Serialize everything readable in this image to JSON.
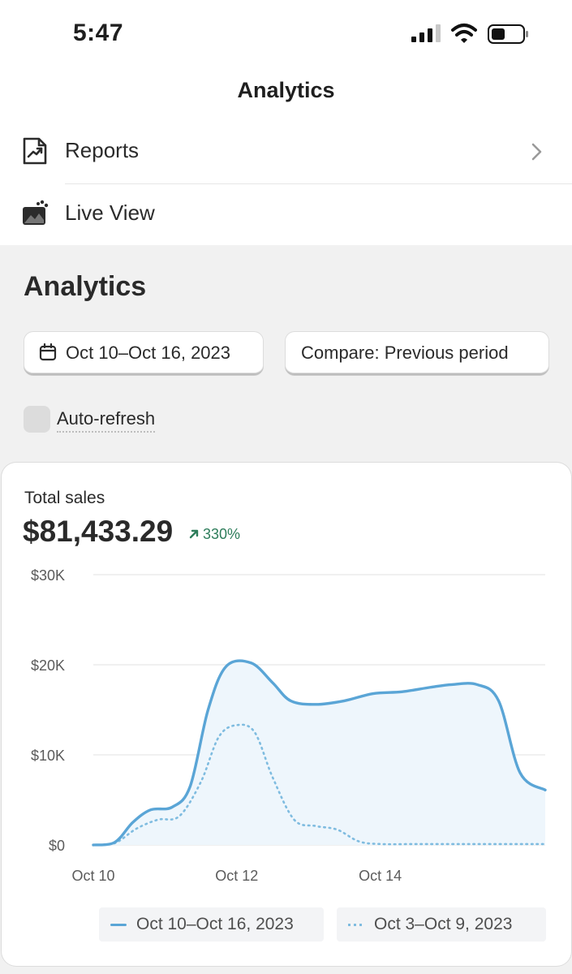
{
  "status_bar": {
    "time": "5:47",
    "icons": [
      "cellular-signal-icon",
      "wifi-icon",
      "battery-icon"
    ]
  },
  "nav": {
    "title": "Analytics"
  },
  "menu": {
    "items": [
      {
        "label": "Reports",
        "icon": "reports-chart-icon",
        "has_chevron": true
      },
      {
        "label": "Live View",
        "icon": "live-view-icon",
        "has_chevron": false
      }
    ]
  },
  "analytics": {
    "title": "Analytics",
    "date_range": "Oct 10–Oct 16, 2023",
    "compare": "Compare: Previous period",
    "auto_refresh_label": "Auto-refresh",
    "auto_refresh_checked": false
  },
  "card": {
    "label": "Total sales",
    "value": "$81,433.29",
    "change": "330%",
    "change_direction": "up",
    "colors": {
      "current": "#5aa5d6",
      "previous": "#7fbce0",
      "fill": "#eef6fc",
      "change": "#2e7d5b"
    }
  },
  "chart_data": {
    "type": "line",
    "y_ticks": [
      "$0",
      "$10K",
      "$20K",
      "$30K"
    ],
    "ylim": [
      0,
      30000
    ],
    "x_ticks": [
      {
        "label": "Oct 10",
        "x": 0
      },
      {
        "label": "Oct 12",
        "x": 2
      },
      {
        "label": "Oct 14",
        "x": 4
      }
    ],
    "xlim": [
      0,
      6.3
    ],
    "series": [
      {
        "name": "Oct 10–Oct 16, 2023",
        "style": "solid",
        "points": [
          [
            0,
            0
          ],
          [
            0.3,
            300
          ],
          [
            0.55,
            2500
          ],
          [
            0.8,
            3900
          ],
          [
            1.1,
            4200
          ],
          [
            1.35,
            6500
          ],
          [
            1.6,
            15000
          ],
          [
            1.85,
            19800
          ],
          [
            2.2,
            20200
          ],
          [
            2.5,
            18000
          ],
          [
            2.75,
            16000
          ],
          [
            3.1,
            15600
          ],
          [
            3.5,
            16000
          ],
          [
            3.9,
            16800
          ],
          [
            4.3,
            17000
          ],
          [
            4.7,
            17500
          ],
          [
            5.0,
            17800
          ],
          [
            5.35,
            17800
          ],
          [
            5.65,
            16000
          ],
          [
            5.95,
            8000
          ],
          [
            6.3,
            6100
          ]
        ]
      },
      {
        "name": "Oct 3–Oct 9, 2023",
        "style": "dotted",
        "points": [
          [
            0,
            0
          ],
          [
            0.3,
            200
          ],
          [
            0.6,
            1800
          ],
          [
            0.9,
            2800
          ],
          [
            1.2,
            3200
          ],
          [
            1.5,
            7000
          ],
          [
            1.75,
            12000
          ],
          [
            2.0,
            13300
          ],
          [
            2.25,
            12500
          ],
          [
            2.5,
            7500
          ],
          [
            2.8,
            2800
          ],
          [
            3.1,
            2100
          ],
          [
            3.4,
            1700
          ],
          [
            3.7,
            400
          ],
          [
            4.0,
            100
          ],
          [
            4.5,
            100
          ],
          [
            5.0,
            100
          ],
          [
            5.5,
            100
          ],
          [
            6.3,
            100
          ]
        ]
      }
    ]
  }
}
